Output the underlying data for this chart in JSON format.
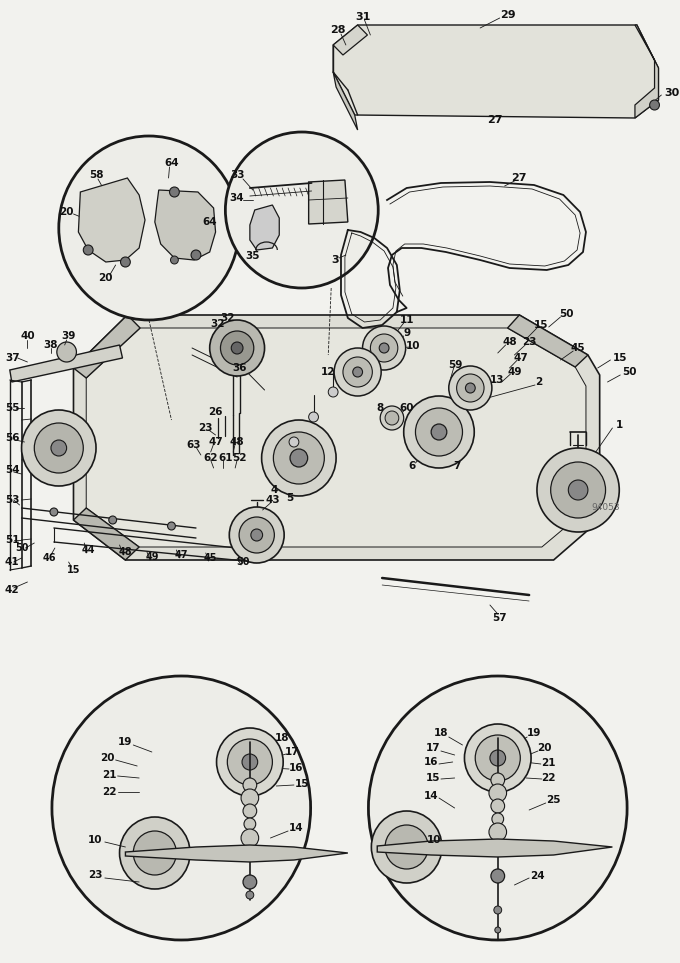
{
  "bg_color": "#f2f2ee",
  "line_color": "#1a1a1a",
  "diagram_id": "94053",
  "figsize": [
    6.8,
    9.63
  ],
  "dpi": 100
}
